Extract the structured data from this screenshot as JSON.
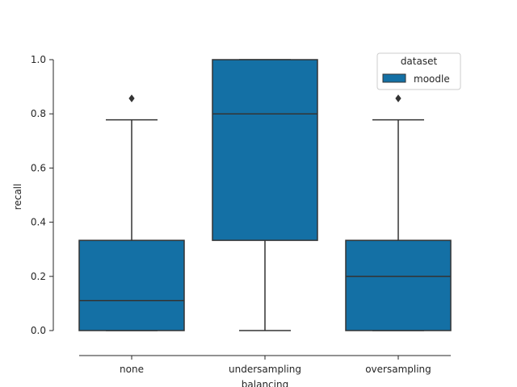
{
  "chart_data": {
    "type": "box",
    "title": "",
    "xlabel": "balancing",
    "ylabel": "recall",
    "categories": [
      "none",
      "undersampling",
      "oversampling"
    ],
    "ylim": [
      -0.05,
      1.0
    ],
    "yticks": [
      "0.0",
      "0.2",
      "0.4",
      "0.6",
      "0.8",
      "1.0"
    ],
    "grid": false,
    "legend": {
      "title": "dataset",
      "placement": "top-right",
      "entries": [
        "moodle"
      ]
    },
    "series": [
      {
        "name": "moodle",
        "color": "#1470a5",
        "boxes": [
          {
            "category": "none",
            "whisker_low": 0.0,
            "q1": 0.0,
            "median": 0.111,
            "q3": 0.333,
            "whisker_high": 0.778,
            "outliers": [
              0.857
            ]
          },
          {
            "category": "undersampling",
            "whisker_low": 0.0,
            "q1": 0.333,
            "median": 0.8,
            "q3": 1.0,
            "whisker_high": 1.0,
            "outliers": []
          },
          {
            "category": "oversampling",
            "whisker_low": 0.0,
            "q1": 0.0,
            "median": 0.2,
            "q3": 0.333,
            "whisker_high": 0.778,
            "outliers": [
              0.857
            ]
          }
        ]
      }
    ]
  }
}
